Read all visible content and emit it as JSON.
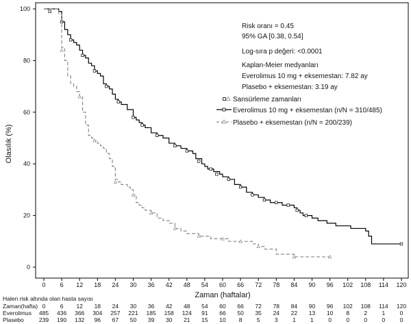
{
  "chart_data": {
    "type": "line",
    "subtype": "kaplan-meier",
    "xlabel": "Zaman (haftalar)",
    "ylabel": "Olasılık (%)",
    "xlim": [
      0,
      120
    ],
    "ylim": [
      0,
      100
    ],
    "xticks": [
      0,
      6,
      12,
      18,
      24,
      30,
      36,
      42,
      48,
      54,
      60,
      66,
      72,
      78,
      84,
      90,
      96,
      102,
      108,
      114,
      120
    ],
    "yticks": [
      0,
      20,
      40,
      60,
      80,
      100
    ],
    "annotations": {
      "hazard_ratio": "Risk oranı = 0.45",
      "ci": "95% GA [0.38, 0.54]",
      "pvalue": "Log-sıra p değeri: <0.0001",
      "km_header": "Kaplan-Meier medyanları",
      "km_evero": "Everolimus 10 mg + eksemestan: 7.82 ay",
      "km_placebo": "Plasebo + eksemestan: 3.19 ay"
    },
    "legend": {
      "position": "right",
      "censor_title": "Sansürleme zamanları",
      "items": [
        "Everolimus 10 mg + eksemestan (n/N = 310/485)",
        "Plasebo + eksemestan (n/N = 200/239)"
      ]
    },
    "series": [
      {
        "name": "Everolimus 10 mg + eksemestan (n/N = 310/485)",
        "color": "#000000",
        "style": "solid",
        "marker": "square",
        "points": [
          [
            0,
            100
          ],
          [
            5,
            99
          ],
          [
            6,
            95
          ],
          [
            7,
            92
          ],
          [
            8,
            90
          ],
          [
            9,
            88
          ],
          [
            10,
            87
          ],
          [
            11,
            86
          ],
          [
            12,
            84
          ],
          [
            13,
            82
          ],
          [
            14,
            81
          ],
          [
            15,
            79
          ],
          [
            16,
            78
          ],
          [
            17,
            76
          ],
          [
            18,
            75
          ],
          [
            19,
            74
          ],
          [
            20,
            71
          ],
          [
            21,
            70
          ],
          [
            22,
            69
          ],
          [
            23,
            67
          ],
          [
            24,
            65
          ],
          [
            25,
            64
          ],
          [
            26,
            63
          ],
          [
            27,
            63
          ],
          [
            28,
            61
          ],
          [
            29,
            61
          ],
          [
            30,
            58
          ],
          [
            31,
            57
          ],
          [
            32,
            56
          ],
          [
            33,
            55
          ],
          [
            34,
            54
          ],
          [
            35,
            54
          ],
          [
            36,
            52
          ],
          [
            38,
            51
          ],
          [
            40,
            50
          ],
          [
            42,
            48
          ],
          [
            44,
            47
          ],
          [
            46,
            46
          ],
          [
            48,
            45
          ],
          [
            50,
            44
          ],
          [
            51,
            42
          ],
          [
            53,
            40
          ],
          [
            54,
            39
          ],
          [
            55,
            38
          ],
          [
            57,
            37
          ],
          [
            59,
            36
          ],
          [
            60,
            35
          ],
          [
            62,
            34
          ],
          [
            64,
            32
          ],
          [
            66,
            31
          ],
          [
            68,
            29
          ],
          [
            70,
            28
          ],
          [
            72,
            27
          ],
          [
            74,
            26
          ],
          [
            76,
            25
          ],
          [
            78,
            25
          ],
          [
            80,
            24
          ],
          [
            82,
            24
          ],
          [
            84,
            23
          ],
          [
            85,
            22
          ],
          [
            86,
            21
          ],
          [
            87,
            20
          ],
          [
            90,
            19
          ],
          [
            92,
            18
          ],
          [
            95,
            17
          ],
          [
            98,
            16
          ],
          [
            101,
            16
          ],
          [
            103,
            15
          ],
          [
            106,
            15
          ],
          [
            108,
            14
          ],
          [
            109,
            12
          ],
          [
            110,
            9
          ],
          [
            115,
            9
          ],
          [
            120,
            9
          ]
        ],
        "censor_points": [
          [
            2,
            99
          ],
          [
            6,
            95
          ],
          [
            9,
            88
          ],
          [
            13,
            82
          ],
          [
            17,
            76
          ],
          [
            21,
            70
          ],
          [
            25,
            64
          ],
          [
            30,
            58
          ],
          [
            33,
            55
          ],
          [
            38,
            51
          ],
          [
            44,
            47
          ],
          [
            48,
            45
          ],
          [
            52,
            41
          ],
          [
            56,
            38
          ],
          [
            58,
            36
          ],
          [
            62,
            34
          ],
          [
            66,
            31
          ],
          [
            70,
            28
          ],
          [
            74,
            26
          ],
          [
            78,
            25
          ],
          [
            82,
            24
          ],
          [
            85,
            22
          ],
          [
            88,
            20
          ],
          [
            120,
            9
          ]
        ]
      },
      {
        "name": "Plasebo + eksemestan (n/N = 200/239)",
        "color": "#888888",
        "style": "dashed",
        "marker": "triangle",
        "points": [
          [
            0,
            100
          ],
          [
            5,
            98
          ],
          [
            6,
            85
          ],
          [
            7,
            80
          ],
          [
            8,
            74
          ],
          [
            9,
            71
          ],
          [
            10,
            70
          ],
          [
            11,
            68
          ],
          [
            12,
            66
          ],
          [
            13,
            60
          ],
          [
            14,
            55
          ],
          [
            15,
            51
          ],
          [
            16,
            50
          ],
          [
            17,
            49
          ],
          [
            18,
            48
          ],
          [
            19,
            47
          ],
          [
            20,
            46
          ],
          [
            21,
            44
          ],
          [
            22,
            42
          ],
          [
            23,
            39
          ],
          [
            24,
            34
          ],
          [
            25,
            33
          ],
          [
            26,
            32
          ],
          [
            27,
            32
          ],
          [
            28,
            31
          ],
          [
            29,
            30
          ],
          [
            30,
            28
          ],
          [
            31,
            25
          ],
          [
            32,
            24
          ],
          [
            33,
            23
          ],
          [
            34,
            22
          ],
          [
            36,
            21
          ],
          [
            38,
            19
          ],
          [
            40,
            18
          ],
          [
            42,
            17
          ],
          [
            44,
            15
          ],
          [
            46,
            14
          ],
          [
            48,
            13
          ],
          [
            50,
            13
          ],
          [
            52,
            12
          ],
          [
            54,
            12
          ],
          [
            56,
            11
          ],
          [
            58,
            11
          ],
          [
            60,
            11
          ],
          [
            62,
            10
          ],
          [
            66,
            10
          ],
          [
            70,
            9
          ],
          [
            72,
            8
          ],
          [
            74,
            7
          ],
          [
            78,
            5
          ],
          [
            80,
            5
          ],
          [
            84,
            4
          ],
          [
            96,
            4
          ]
        ],
        "censor_points": [
          [
            6,
            84
          ],
          [
            12,
            66
          ],
          [
            17,
            49
          ],
          [
            24,
            33
          ],
          [
            30,
            28
          ],
          [
            36,
            21
          ],
          [
            44,
            15
          ],
          [
            52,
            12
          ],
          [
            60,
            11
          ],
          [
            66,
            10
          ],
          [
            72,
            8
          ],
          [
            84,
            4
          ],
          [
            96,
            4
          ]
        ]
      }
    ],
    "risk_table": {
      "title": "Halen risk altında olan hasta sayısı",
      "header_label": "Zaman(hafta)",
      "times": [
        "0",
        "6",
        "12",
        "18",
        "24",
        "30",
        "36",
        "42",
        "48",
        "54",
        "60",
        "66",
        "72",
        "78",
        "84",
        "90",
        "96",
        "102",
        "108",
        "114",
        "120"
      ],
      "rows": [
        {
          "label": "Everolimus",
          "values": [
            "485",
            "436",
            "366",
            "304",
            "257",
            "221",
            "185",
            "158",
            "124",
            "91",
            "66",
            "50",
            "35",
            "24",
            "22",
            "13",
            "10",
            "8",
            "2",
            "1",
            "0"
          ]
        },
        {
          "label": "Plasebo",
          "values": [
            "239",
            "190",
            "132",
            "96",
            "67",
            "50",
            "39",
            "30",
            "21",
            "15",
            "10",
            "8",
            "5",
            "3",
            "1",
            "1",
            "0",
            "0",
            "0",
            "0",
            "0"
          ]
        }
      ]
    }
  }
}
